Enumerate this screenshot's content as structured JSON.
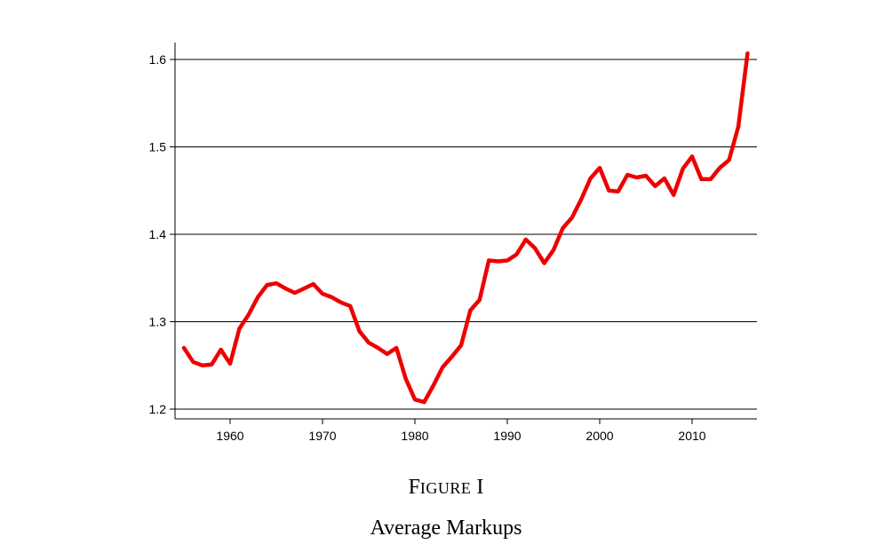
{
  "chart_data": {
    "type": "line",
    "title": "",
    "xlabel": "",
    "ylabel": "",
    "xlim": [
      1954,
      2017
    ],
    "ylim": [
      1.19,
      1.62
    ],
    "grid": "horizontal",
    "x_ticks": [
      1960,
      1970,
      1980,
      1990,
      2000,
      2010
    ],
    "y_ticks": [
      1.2,
      1.3,
      1.4,
      1.5,
      1.6
    ],
    "x_tick_labels": [
      "1960",
      "1970",
      "1980",
      "1990",
      "2000",
      "2010"
    ],
    "y_tick_labels": [
      "1.2",
      "1.3",
      "1.4",
      "1.5",
      "1.6"
    ],
    "series": [
      {
        "color": "#ee0000",
        "x": [
          1955,
          1956,
          1957,
          1958,
          1959,
          1960,
          1961,
          1962,
          1963,
          1964,
          1965,
          1966,
          1967,
          1968,
          1969,
          1970,
          1971,
          1972,
          1973,
          1974,
          1975,
          1976,
          1977,
          1978,
          1979,
          1980,
          1981,
          1982,
          1983,
          1984,
          1985,
          1986,
          1987,
          1988,
          1989,
          1990,
          1991,
          1992,
          1993,
          1994,
          1995,
          1996,
          1997,
          1998,
          1999,
          2000,
          2001,
          2002,
          2003,
          2004,
          2005,
          2006,
          2007,
          2008,
          2009,
          2010,
          2011,
          2012,
          2013,
          2014,
          2015,
          2016
        ],
        "values": [
          1.27,
          1.254,
          1.25,
          1.251,
          1.268,
          1.252,
          1.292,
          1.308,
          1.328,
          1.342,
          1.344,
          1.338,
          1.333,
          1.338,
          1.343,
          1.332,
          1.328,
          1.322,
          1.318,
          1.289,
          1.276,
          1.27,
          1.263,
          1.27,
          1.235,
          1.211,
          1.208,
          1.227,
          1.248,
          1.26,
          1.273,
          1.313,
          1.325,
          1.37,
          1.369,
          1.37,
          1.377,
          1.394,
          1.384,
          1.367,
          1.382,
          1.407,
          1.419,
          1.44,
          1.464,
          1.476,
          1.45,
          1.449,
          1.468,
          1.465,
          1.467,
          1.455,
          1.464,
          1.445,
          1.475,
          1.489,
          1.463,
          1.463,
          1.476,
          1.485,
          1.523,
          1.607
        ]
      }
    ]
  },
  "caption": {
    "figure_label_first": "F",
    "figure_label_rest": "IGURE",
    "figure_number": "I",
    "title": "Average Markups"
  }
}
